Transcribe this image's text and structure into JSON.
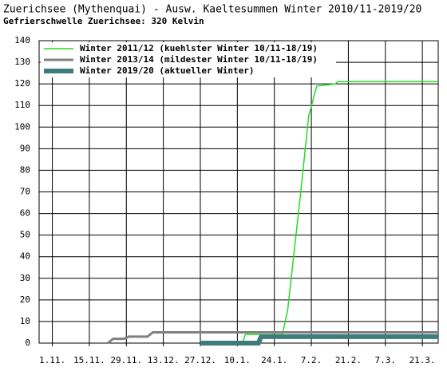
{
  "chart_data": {
    "type": "line",
    "title": "Zuerichsee (Mythenquai) - Ausw. Kaeltesummen Winter 2010/11-2019/20",
    "subtitle": "Gefrierschwelle Zuerichsee: 320 Kelvin",
    "xlim": [
      "27.10.",
      "27.3."
    ],
    "xticks": [
      "1.11.",
      "15.11.",
      "29.11.",
      "13.12.",
      "27.12.",
      "10.1.",
      "24.1.",
      "7.2.",
      "21.2.",
      "7.3.",
      "21.3."
    ],
    "ylim": [
      0,
      140
    ],
    "yticks": [
      0,
      10,
      20,
      30,
      40,
      50,
      60,
      70,
      80,
      90,
      100,
      110,
      120,
      130,
      140
    ],
    "grid": true,
    "legend": "top-left",
    "series": [
      {
        "name": "Winter 2011/12 (kuehlster Winter 10/11-18/19)",
        "color": "#22dd22",
        "x": [
          "12.1.",
          "13.1.",
          "27.1.",
          "29.1.",
          "3.2.",
          "6.2.",
          "9.2.",
          "16.2.",
          "17.2.",
          "27.3."
        ],
        "values": [
          0,
          4,
          4,
          15,
          70,
          105,
          119,
          120,
          121,
          121
        ]
      },
      {
        "name": "Winter 2013/14 (mildester Winter 10/11-18/19)",
        "color": "#808080",
        "x": [
          "22.11.",
          "24.11.",
          "28.11.",
          "30.11.",
          "7.12.",
          "9.12.",
          "27.3."
        ],
        "values": [
          0,
          2,
          2,
          3,
          3,
          5,
          5
        ]
      },
      {
        "name": "Winter 2019/20 (aktueller Winter)",
        "color": "#3e7b7b",
        "x": [
          "27.12.",
          "18.1.",
          "19.1.",
          "27.3."
        ],
        "values": [
          0,
          0,
          3,
          3
        ]
      }
    ]
  }
}
